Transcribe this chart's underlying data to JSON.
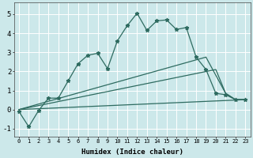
{
  "xlabel": "Humidex (Indice chaleur)",
  "bg_color": "#cce8ea",
  "grid_color": "#ffffff",
  "line_color": "#2e6b60",
  "xlim": [
    -0.5,
    23.5
  ],
  "ylim": [
    -1.4,
    5.6
  ],
  "xticks": [
    0,
    1,
    2,
    3,
    4,
    5,
    6,
    7,
    8,
    9,
    10,
    11,
    12,
    13,
    14,
    15,
    16,
    17,
    18,
    19,
    20,
    21,
    22,
    23
  ],
  "yticks": [
    -1,
    0,
    1,
    2,
    3,
    4,
    5
  ],
  "main_x": [
    0,
    1,
    2,
    3,
    4,
    5,
    6,
    7,
    8,
    9,
    10,
    11,
    12,
    13,
    14,
    15,
    16,
    17,
    18,
    19,
    20,
    21,
    22,
    23
  ],
  "main_y": [
    -0.1,
    -0.9,
    -0.05,
    0.6,
    0.6,
    1.5,
    2.4,
    2.85,
    2.95,
    2.15,
    3.6,
    4.4,
    5.05,
    4.15,
    4.65,
    4.7,
    4.2,
    4.3,
    2.75,
    2.1,
    0.85,
    0.78,
    0.52,
    0.52
  ],
  "line1_x": [
    0,
    23
  ],
  "line1_y": [
    0.0,
    0.52
  ],
  "line2_x": [
    0,
    20,
    21,
    22,
    23
  ],
  "line2_y": [
    0.0,
    2.1,
    0.85,
    0.52,
    0.52
  ],
  "line3_x": [
    0,
    19,
    21,
    22,
    23
  ],
  "line3_y": [
    0.0,
    2.75,
    0.85,
    0.52,
    0.52
  ]
}
